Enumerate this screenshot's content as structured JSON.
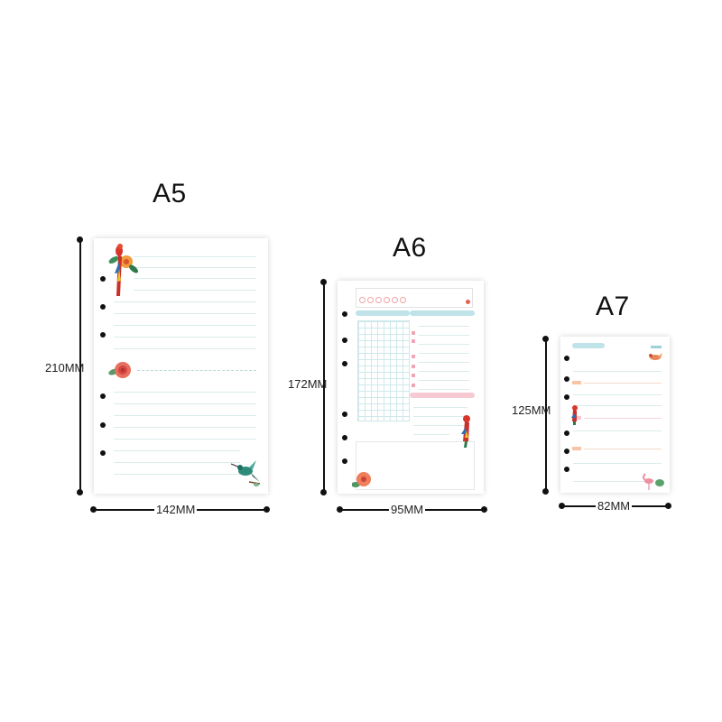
{
  "sizes": [
    {
      "name": "A5",
      "width_label": "142MM",
      "height_label": "210MM"
    },
    {
      "name": "A6",
      "width_label": "95MM",
      "height_label": "172MM"
    },
    {
      "name": "A7",
      "width_label": "82MM",
      "height_label": "125MM"
    }
  ],
  "icons": {
    "a5": [
      "parrot-flower-illustration",
      "rose-illustration",
      "hummingbird-illustration"
    ],
    "a6": [
      "parrot-illustration",
      "hibiscus-illustration"
    ],
    "a7": [
      "bird-illustration",
      "parrot-illustration",
      "flamingo-illustration"
    ]
  },
  "colors": {
    "accent_blue": "#bfe3e9",
    "accent_pink": "#f6c9d3",
    "accent_orange": "#f7c4a6"
  }
}
